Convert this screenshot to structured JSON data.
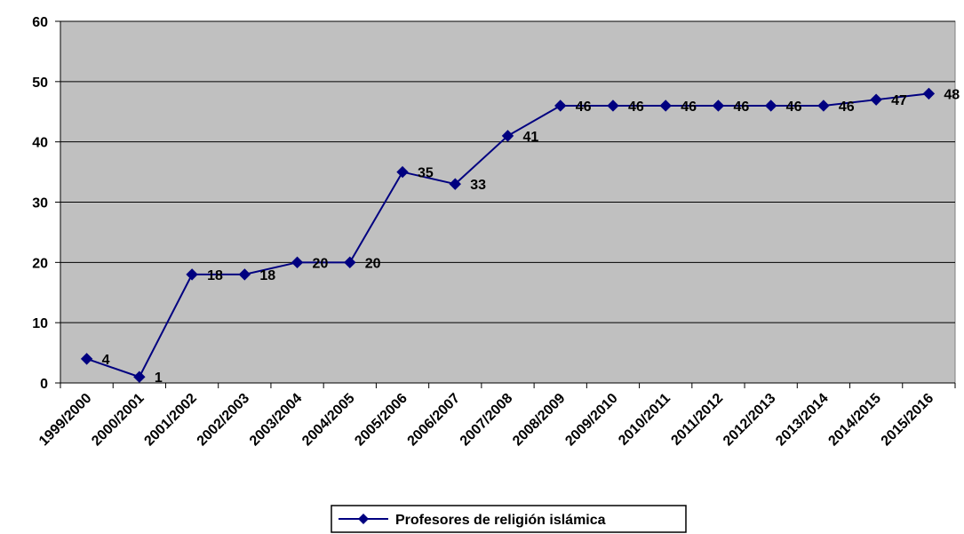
{
  "chart_data": {
    "type": "line",
    "title": "",
    "xlabel": "",
    "ylabel": "",
    "categories": [
      "1999/2000",
      "2000/2001",
      "2001/2002",
      "2002/2003",
      "2003/2004",
      "2004/2005",
      "2005/2006",
      "2006/2007",
      "2007/2008",
      "2008/2009",
      "2009/2010",
      "2010/2011",
      "2011/2012",
      "2012/2013",
      "2013/2014",
      "2014/2015",
      "2015/2016"
    ],
    "series": [
      {
        "name": "Profesores de religión islámica",
        "values": [
          4,
          1,
          18,
          18,
          20,
          20,
          35,
          33,
          41,
          46,
          46,
          46,
          46,
          46,
          46,
          47,
          48
        ]
      }
    ],
    "yticks": [
      "0",
      "10",
      "20",
      "30",
      "40",
      "50",
      "60"
    ],
    "ylim": [
      0,
      60
    ],
    "grid": true,
    "legend_position": "bottom-center",
    "colors": {
      "series": "#000080",
      "plot_background": "#c0c0c0",
      "gridline": "#000000",
      "page_background": "#ffffff"
    }
  }
}
